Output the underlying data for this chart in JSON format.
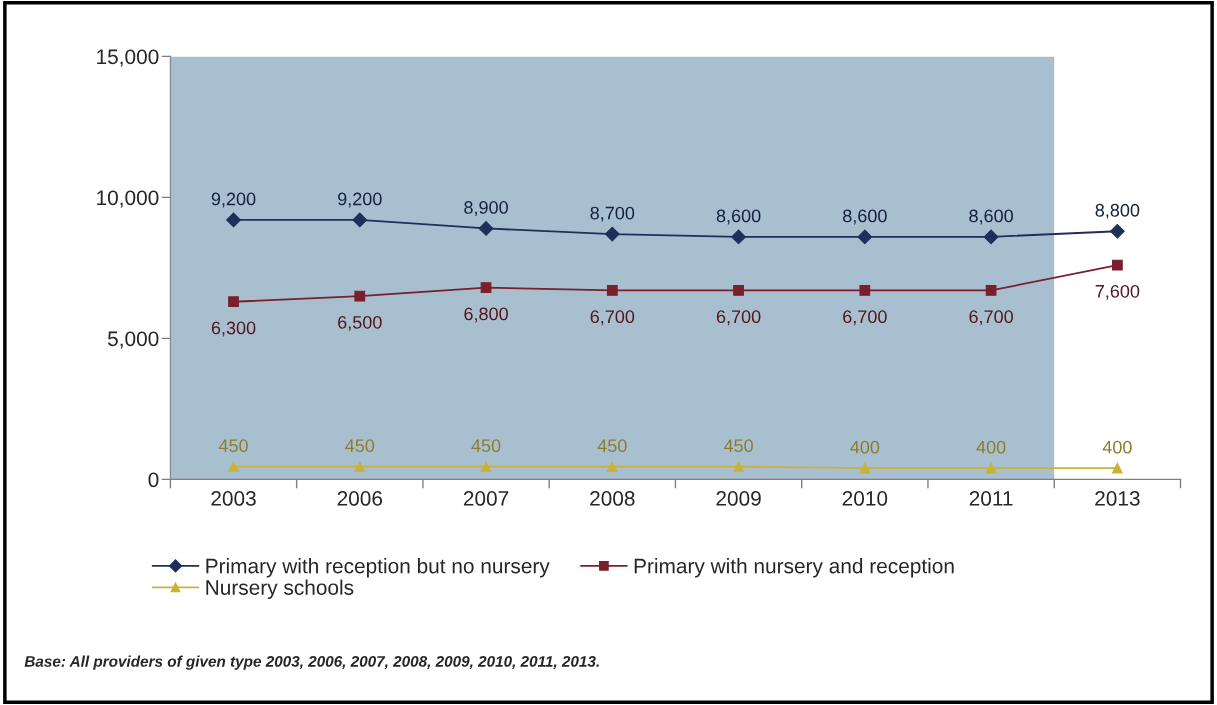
{
  "chart_data": {
    "type": "line",
    "categories": [
      "2003",
      "2006",
      "2007",
      "2008",
      "2009",
      "2010",
      "2011",
      "2013"
    ],
    "series": [
      {
        "name": "Primary with reception but no nursery",
        "color": "#1f2f5c",
        "marker": "diamond",
        "values": [
          9200,
          9200,
          8900,
          8700,
          8600,
          8600,
          8600,
          8800
        ],
        "value_labels": [
          "9,200",
          "9,200",
          "8,900",
          "8,700",
          "8,600",
          "8,600",
          "8,600",
          "8,800"
        ]
      },
      {
        "name": "Primary with nursery and reception",
        "color": "#7a1f2b",
        "marker": "square",
        "values": [
          6300,
          6500,
          6800,
          6700,
          6700,
          6700,
          6700,
          7600
        ],
        "value_labels": [
          "6,300",
          "6,500",
          "6,800",
          "6,700",
          "6,700",
          "6,700",
          "6,700",
          "7,600"
        ]
      },
      {
        "name": "Nursery schools",
        "color": "#c9b23a",
        "marker": "triangle",
        "values": [
          450,
          450,
          450,
          450,
          450,
          400,
          400,
          400
        ],
        "value_labels": [
          "450",
          "450",
          "450",
          "450",
          "450",
          "400",
          "400",
          "400"
        ]
      }
    ],
    "ylim": [
      0,
      15000
    ],
    "yticks": [
      0,
      {
        "value": 5000,
        "label": "5,000"
      },
      {
        "value": 10000,
        "label": "10,000"
      },
      {
        "value": 15000,
        "label": "15,000"
      }
    ],
    "bands": [
      {
        "axis": "x",
        "from": "2003",
        "to": "2011",
        "color": "#a8bfcf"
      }
    ],
    "grid": false,
    "legend": "bottom",
    "annotations": [
      "Base: All providers of given type 2003, 2006, 2007, 2008, 2009, 2010, 2011, 2013."
    ]
  }
}
